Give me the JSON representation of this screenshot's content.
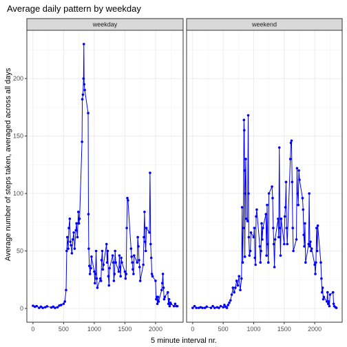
{
  "chart_data": {
    "type": "line",
    "title": "Average daily pattern by weekday",
    "xlabel": "5 minute interval nr.",
    "ylabel": "Average number of steps taken, averaged across all days",
    "xlim": [
      -100,
      2450
    ],
    "ylim": [
      -12,
      242
    ],
    "x_ticks": [
      0,
      500,
      1000,
      1500,
      2000
    ],
    "y_ticks": [
      0,
      50,
      100,
      150,
      200
    ],
    "grid": true,
    "line_color": "#0000ff",
    "panels": [
      {
        "name": "weekday",
        "series": [
          [
            0,
            2.3
          ],
          [
            30,
            1.5
          ],
          [
            60,
            2
          ],
          [
            100,
            0.5
          ],
          [
            130,
            1.5
          ],
          [
            160,
            0.5
          ],
          [
            200,
            1
          ],
          [
            230,
            1.8
          ],
          [
            300,
            0.8
          ],
          [
            330,
            1.5
          ],
          [
            360,
            0.5
          ],
          [
            400,
            1
          ],
          [
            430,
            2.5
          ],
          [
            460,
            3
          ],
          [
            500,
            4
          ],
          [
            520,
            6
          ],
          [
            540,
            16
          ],
          [
            550,
            50
          ],
          [
            560,
            62
          ],
          [
            575,
            52
          ],
          [
            585,
            70
          ],
          [
            600,
            78
          ],
          [
            610,
            58
          ],
          [
            620,
            55
          ],
          [
            635,
            48
          ],
          [
            650,
            60
          ],
          [
            665,
            66
          ],
          [
            680,
            52
          ],
          [
            700,
            68
          ],
          [
            710,
            74
          ],
          [
            725,
            62
          ],
          [
            740,
            84
          ],
          [
            750,
            74
          ],
          [
            760,
            78
          ],
          [
            800,
            145
          ],
          [
            805,
            182
          ],
          [
            815,
            186
          ],
          [
            825,
            200
          ],
          [
            830,
            230
          ],
          [
            835,
            195
          ],
          [
            845,
            190
          ],
          [
            900,
            170
          ],
          [
            905,
            82
          ],
          [
            910,
            52
          ],
          [
            920,
            37
          ],
          [
            930,
            30
          ],
          [
            945,
            35
          ],
          [
            955,
            45
          ],
          [
            1000,
            32
          ],
          [
            1010,
            22
          ],
          [
            1020,
            30
          ],
          [
            1030,
            50
          ],
          [
            1040,
            26
          ],
          [
            1050,
            18
          ],
          [
            1100,
            26
          ],
          [
            1110,
            24
          ],
          [
            1120,
            42
          ],
          [
            1130,
            50
          ],
          [
            1140,
            34
          ],
          [
            1150,
            38
          ],
          [
            1200,
            56
          ],
          [
            1210,
            40
          ],
          [
            1220,
            50
          ],
          [
            1230,
            28
          ],
          [
            1240,
            20
          ],
          [
            1250,
            35
          ],
          [
            1300,
            46
          ],
          [
            1310,
            40
          ],
          [
            1320,
            24
          ],
          [
            1330,
            30
          ],
          [
            1340,
            50
          ],
          [
            1350,
            40
          ],
          [
            1400,
            32
          ],
          [
            1410,
            46
          ],
          [
            1420,
            36
          ],
          [
            1430,
            28
          ],
          [
            1440,
            44
          ],
          [
            1450,
            40
          ],
          [
            1500,
            32
          ],
          [
            1510,
            26
          ],
          [
            1520,
            30
          ],
          [
            1530,
            70
          ],
          [
            1540,
            96
          ],
          [
            1550,
            94
          ],
          [
            1600,
            52
          ],
          [
            1610,
            45
          ],
          [
            1620,
            40
          ],
          [
            1630,
            34
          ],
          [
            1640,
            30
          ],
          [
            1650,
            46
          ],
          [
            1700,
            40
          ],
          [
            1710,
            62
          ],
          [
            1720,
            54
          ],
          [
            1730,
            42
          ],
          [
            1740,
            36
          ],
          [
            1750,
            24
          ],
          [
            1800,
            38
          ],
          [
            1810,
            62
          ],
          [
            1820,
            84
          ],
          [
            1830,
            58
          ],
          [
            1840,
            50
          ],
          [
            1850,
            70
          ],
          [
            1900,
            66
          ],
          [
            1910,
            118
          ],
          [
            1920,
            56
          ],
          [
            1930,
            44
          ],
          [
            1940,
            30
          ],
          [
            1950,
            28
          ],
          [
            2000,
            24
          ],
          [
            2010,
            8
          ],
          [
            2020,
            10
          ],
          [
            2030,
            4
          ],
          [
            2040,
            10
          ],
          [
            2050,
            6
          ],
          [
            2100,
            16
          ],
          [
            2110,
            22
          ],
          [
            2120,
            30
          ],
          [
            2130,
            18
          ],
          [
            2140,
            8
          ],
          [
            2150,
            10
          ],
          [
            2200,
            14
          ],
          [
            2210,
            4
          ],
          [
            2220,
            8
          ],
          [
            2230,
            2
          ],
          [
            2240,
            5
          ],
          [
            2250,
            4
          ],
          [
            2300,
            2
          ],
          [
            2320,
            4
          ],
          [
            2340,
            2
          ],
          [
            2355,
            2
          ]
        ]
      },
      {
        "name": "weekend",
        "series": [
          [
            0,
            0.5
          ],
          [
            30,
            2
          ],
          [
            60,
            0.5
          ],
          [
            100,
            0.5
          ],
          [
            130,
            1
          ],
          [
            160,
            0.5
          ],
          [
            200,
            0.5
          ],
          [
            230,
            1.5
          ],
          [
            300,
            0.5
          ],
          [
            330,
            2
          ],
          [
            360,
            0.5
          ],
          [
            400,
            1
          ],
          [
            430,
            0.5
          ],
          [
            460,
            2
          ],
          [
            500,
            1
          ],
          [
            520,
            3
          ],
          [
            540,
            1.5
          ],
          [
            560,
            0.5
          ],
          [
            580,
            3
          ],
          [
            600,
            5
          ],
          [
            620,
            7
          ],
          [
            640,
            12
          ],
          [
            660,
            18
          ],
          [
            680,
            14
          ],
          [
            700,
            18
          ],
          [
            720,
            24
          ],
          [
            740,
            20
          ],
          [
            760,
            28
          ],
          [
            780,
            16
          ],
          [
            800,
            26
          ],
          [
            810,
            88
          ],
          [
            820,
            40
          ],
          [
            830,
            70
          ],
          [
            840,
            164
          ],
          [
            845,
            155
          ],
          [
            850,
            120
          ],
          [
            855,
            45
          ],
          [
            860,
            100
          ],
          [
            870,
            130
          ],
          [
            880,
            78
          ],
          [
            900,
            76
          ],
          [
            910,
            168
          ],
          [
            915,
            100
          ],
          [
            920,
            62
          ],
          [
            930,
            46
          ],
          [
            945,
            50
          ],
          [
            955,
            66
          ],
          [
            1000,
            62
          ],
          [
            1010,
            70
          ],
          [
            1020,
            44
          ],
          [
            1030,
            38
          ],
          [
            1040,
            80
          ],
          [
            1050,
            86
          ],
          [
            1100,
            54
          ],
          [
            1110,
            40
          ],
          [
            1120,
            50
          ],
          [
            1130,
            74
          ],
          [
            1140,
            60
          ],
          [
            1150,
            70
          ],
          [
            1200,
            82
          ],
          [
            1210,
            46
          ],
          [
            1220,
            90
          ],
          [
            1230,
            56
          ],
          [
            1240,
            40
          ],
          [
            1250,
            100
          ],
          [
            1300,
            106
          ],
          [
            1310,
            96
          ],
          [
            1320,
            70
          ],
          [
            1330,
            56
          ],
          [
            1340,
            36
          ],
          [
            1350,
            60
          ],
          [
            1400,
            78
          ],
          [
            1410,
            62
          ],
          [
            1420,
            140
          ],
          [
            1430,
            70
          ],
          [
            1440,
            46
          ],
          [
            1450,
            78
          ],
          [
            1500,
            56
          ],
          [
            1510,
            80
          ],
          [
            1520,
            88
          ],
          [
            1530,
            110
          ],
          [
            1540,
            70
          ],
          [
            1550,
            56
          ],
          [
            1600,
            130
          ],
          [
            1610,
            144
          ],
          [
            1620,
            146
          ],
          [
            1630,
            110
          ],
          [
            1640,
            70
          ],
          [
            1650,
            50
          ],
          [
            1700,
            60
          ],
          [
            1710,
            122
          ],
          [
            1720,
            100
          ],
          [
            1730,
            90
          ],
          [
            1740,
            120
          ],
          [
            1750,
            112
          ],
          [
            1800,
            96
          ],
          [
            1810,
            86
          ],
          [
            1820,
            64
          ],
          [
            1830,
            54
          ],
          [
            1840,
            74
          ],
          [
            1850,
            40
          ],
          [
            1900,
            56
          ],
          [
            1910,
            100
          ],
          [
            1920,
            54
          ],
          [
            1930,
            58
          ],
          [
            1940,
            50
          ],
          [
            1950,
            52
          ],
          [
            2000,
            38
          ],
          [
            2010,
            30
          ],
          [
            2020,
            40
          ],
          [
            2030,
            70
          ],
          [
            2040,
            50
          ],
          [
            2050,
            72
          ],
          [
            2100,
            40
          ],
          [
            2110,
            26
          ],
          [
            2120,
            14
          ],
          [
            2130,
            18
          ],
          [
            2140,
            8
          ],
          [
            2150,
            10
          ],
          [
            2200,
            6
          ],
          [
            2210,
            14
          ],
          [
            2220,
            4
          ],
          [
            2230,
            6
          ],
          [
            2240,
            2
          ],
          [
            2250,
            12
          ],
          [
            2300,
            14
          ],
          [
            2310,
            4
          ],
          [
            2320,
            2
          ],
          [
            2340,
            1
          ],
          [
            2355,
            0.5
          ]
        ]
      }
    ]
  }
}
